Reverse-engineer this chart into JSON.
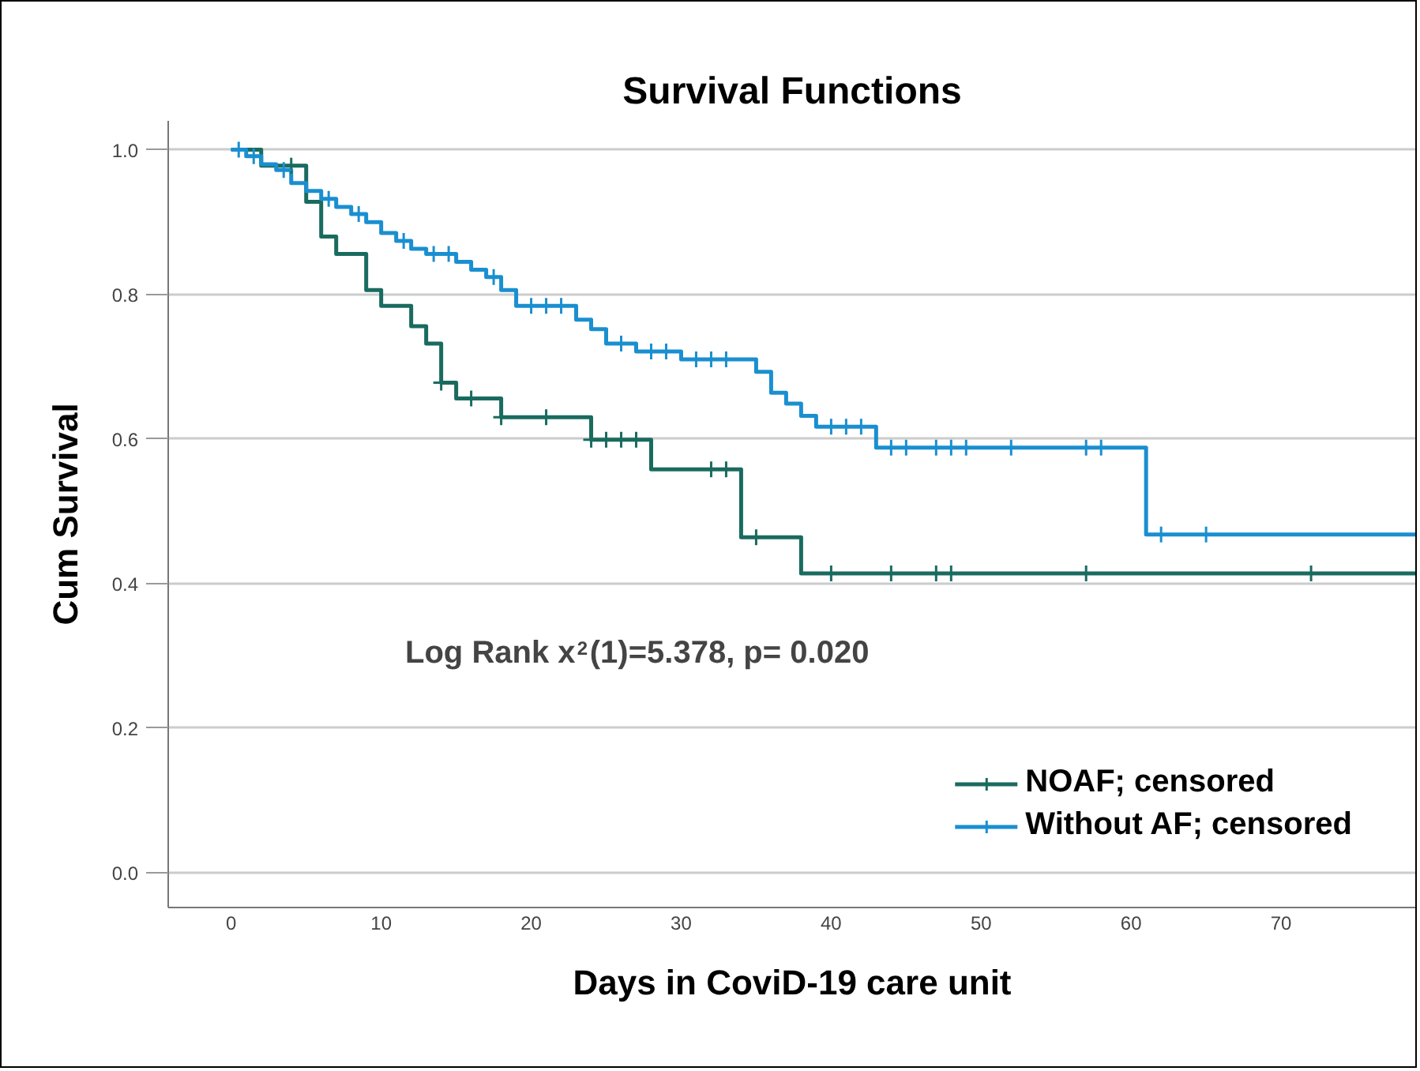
{
  "chart_data": {
    "type": "step",
    "title": "Survival Functions",
    "xlabel": "Days in CoviD-19 care unit",
    "ylabel": "Cum Survival",
    "annotations": [
      "Log Rank  x$^{2}$(1)=5.378, p= 0.020"
    ],
    "xlim": [
      -4.2,
      79
    ],
    "xticks": [
      0,
      10,
      20,
      30,
      40,
      50,
      60,
      70
    ],
    "ylim": [
      -0.048,
      1.04
    ],
    "yticks": [
      {
        "value": 0,
        "label": "0.0"
      },
      0.2,
      0.4,
      0.6,
      0.8,
      {
        "value": 1,
        "label": "1.0"
      }
    ],
    "grid": "y",
    "legend": "bottom right",
    "line_style": "solid",
    "series": [
      {
        "name": "NOAF; censored",
        "color": "#1a6b5f",
        "x": [
          0,
          2,
          5,
          6,
          7,
          9,
          10,
          12,
          13,
          14,
          15,
          18,
          24,
          28,
          34,
          38,
          79
        ],
        "values": [
          1.0,
          0.978,
          0.928,
          0.88,
          0.856,
          0.806,
          0.784,
          0.756,
          0.732,
          0.678,
          0.656,
          0.63,
          0.599,
          0.558,
          0.464,
          0.414,
          0.414
        ]
      },
      {
        "name": "Without AF; censored",
        "color": "#1a8fd0",
        "x": [
          0,
          1,
          2,
          3,
          4,
          5,
          6,
          7,
          8,
          9,
          10,
          11,
          12,
          13,
          15,
          16,
          17,
          18,
          19,
          23,
          24,
          25,
          27,
          30,
          35,
          36,
          37,
          38,
          39,
          43,
          61,
          79
        ],
        "values": [
          1.0,
          0.991,
          0.98,
          0.972,
          0.954,
          0.943,
          0.932,
          0.921,
          0.911,
          0.9,
          0.885,
          0.874,
          0.863,
          0.856,
          0.845,
          0.834,
          0.824,
          0.806,
          0.784,
          0.765,
          0.752,
          0.732,
          0.721,
          0.71,
          0.693,
          0.664,
          0.649,
          0.632,
          0.617,
          0.588,
          0.468,
          0.468
        ]
      },
      {
        "type": "scatter",
        "marker": "cross",
        "color": "#1a6b5f",
        "x": [
          4,
          14,
          16,
          18,
          21,
          24,
          25,
          26,
          27,
          32,
          33,
          35,
          40,
          44,
          47,
          48,
          57,
          72
        ],
        "values": [
          0.978,
          0.678,
          0.656,
          0.63,
          0.63,
          0.599,
          0.599,
          0.599,
          0.599,
          0.558,
          0.558,
          0.464,
          0.414,
          0.414,
          0.414,
          0.414,
          0.414,
          0.414
        ]
      },
      {
        "type": "scatter",
        "marker": "cross",
        "color": "#1a8fd0",
        "x": [
          0.5,
          1.5,
          3.5,
          6.5,
          8.5,
          11.5,
          13.5,
          14.5,
          17.5,
          20,
          21,
          22,
          26,
          28,
          29,
          31,
          32,
          33,
          40,
          41,
          42,
          44,
          45,
          47,
          48,
          49,
          52,
          57,
          58,
          62,
          65
        ],
        "values": [
          1.0,
          0.991,
          0.972,
          0.932,
          0.911,
          0.874,
          0.856,
          0.856,
          0.824,
          0.784,
          0.784,
          0.784,
          0.732,
          0.721,
          0.721,
          0.71,
          0.71,
          0.71,
          0.617,
          0.617,
          0.617,
          0.588,
          0.588,
          0.588,
          0.588,
          0.588,
          0.588,
          0.588,
          0.588,
          0.468,
          0.468
        ]
      }
    ]
  }
}
